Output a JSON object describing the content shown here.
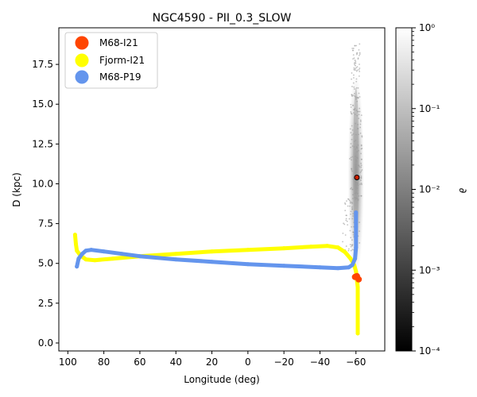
{
  "chart_data": {
    "type": "scatter",
    "title": "NGC4590 - PII_0.3_SLOW",
    "xlabel": "Longitude (deg)",
    "ylabel": "D (kpc)",
    "xlim": [
      105,
      -76
    ],
    "ylim": [
      -0.5,
      19.8
    ],
    "x_ticks": [
      100,
      80,
      60,
      40,
      20,
      0,
      -20,
      -40,
      -60
    ],
    "x_tick_labels": [
      "100",
      "80",
      "60",
      "40",
      "20",
      "0",
      "−20",
      "−40",
      "−60"
    ],
    "y_ticks": [
      0.0,
      2.5,
      5.0,
      7.5,
      10.0,
      12.5,
      15.0,
      17.5
    ],
    "y_tick_labels": [
      "0.0",
      "2.5",
      "5.0",
      "7.5",
      "10.0",
      "12.5",
      "15.0",
      "17.5"
    ],
    "legend": {
      "position": "top-left",
      "entries": [
        {
          "label": "M68-I21",
          "color": "#ff4500"
        },
        {
          "label": "Fjorm-I21",
          "color": "#ffff00"
        },
        {
          "label": "M68-P19",
          "color": "#6495ed"
        }
      ]
    },
    "series": [
      {
        "name": "Fjorm-I21",
        "color": "#ffff00",
        "points": [
          [
            -61,
            0.6
          ],
          [
            -61,
            1.0
          ],
          [
            -61,
            1.5
          ],
          [
            -61,
            2.0
          ],
          [
            -61,
            2.5
          ],
          [
            -61,
            3.0
          ],
          [
            -61,
            3.5
          ],
          [
            -60.5,
            4.0
          ],
          [
            -60,
            4.5
          ],
          [
            -59,
            4.9
          ],
          [
            -57,
            5.3
          ],
          [
            -54,
            5.7
          ],
          [
            -50,
            6.0
          ],
          [
            -44,
            6.1
          ],
          [
            -35,
            6.05
          ],
          [
            -20,
            5.95
          ],
          [
            0,
            5.85
          ],
          [
            20,
            5.75
          ],
          [
            40,
            5.6
          ],
          [
            60,
            5.45
          ],
          [
            75,
            5.3
          ],
          [
            85,
            5.2
          ],
          [
            90,
            5.25
          ],
          [
            93,
            5.5
          ],
          [
            95,
            5.8
          ],
          [
            95.5,
            6.2
          ],
          [
            96,
            6.8
          ]
        ]
      },
      {
        "name": "M68-P19",
        "color": "#6495ed",
        "points": [
          [
            95,
            4.8
          ],
          [
            94,
            5.3
          ],
          [
            92,
            5.6
          ],
          [
            90,
            5.8
          ],
          [
            87,
            5.85
          ],
          [
            80,
            5.75
          ],
          [
            70,
            5.6
          ],
          [
            60,
            5.45
          ],
          [
            40,
            5.25
          ],
          [
            20,
            5.1
          ],
          [
            0,
            4.95
          ],
          [
            -20,
            4.85
          ],
          [
            -40,
            4.75
          ],
          [
            -50,
            4.7
          ],
          [
            -56,
            4.75
          ],
          [
            -58,
            4.9
          ],
          [
            -59.5,
            5.3
          ],
          [
            -60,
            6.0
          ],
          [
            -60,
            6.7
          ],
          [
            -60,
            7.3
          ],
          [
            -60,
            8.2
          ]
        ]
      },
      {
        "name": "M68-I21",
        "color": "#ff4500",
        "points": [
          [
            -59.5,
            4.15
          ],
          [
            -61.5,
            4.0
          ],
          [
            -60.5,
            4.2
          ]
        ]
      },
      {
        "name": "cluster",
        "color": "#cc2200",
        "points": [
          [
            -60.5,
            10.4
          ]
        ]
      }
    ],
    "density": {
      "center": [
        -60,
        10.5
      ],
      "lon_range": [
        -63,
        -54
      ],
      "d_range": [
        5.8,
        18.8
      ]
    },
    "colorbar": {
      "label": "∂",
      "scale": "log",
      "range": [
        0.0001,
        1
      ],
      "tick_labels": [
        "10⁻⁴",
        "10⁻³",
        "10⁻²",
        "10⁻¹",
        "10⁰"
      ]
    }
  }
}
